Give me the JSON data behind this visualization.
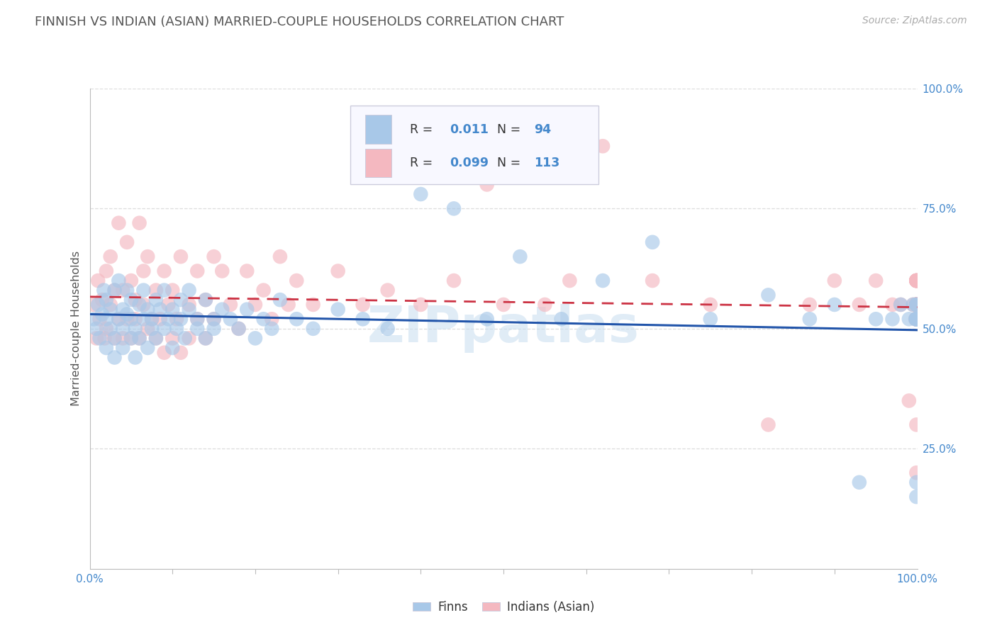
{
  "title": "FINNISH VS INDIAN (ASIAN) MARRIED-COUPLE HOUSEHOLDS CORRELATION CHART",
  "source": "Source: ZipAtlas.com",
  "ylabel": "Married-couple Households",
  "xlim": [
    0.0,
    1.0
  ],
  "ylim": [
    0.0,
    1.0
  ],
  "finns_R": 0.011,
  "finns_N": 94,
  "indians_R": 0.099,
  "indians_N": 113,
  "finns_color": "#a8c8e8",
  "indians_color": "#f4b8c0",
  "finns_line_color": "#2255aa",
  "indians_line_color": "#cc3344",
  "watermark_color": "#c8ddf0",
  "background_color": "#ffffff",
  "grid_color": "#dddddd",
  "title_color": "#555555",
  "source_color": "#aaaaaa",
  "tick_color": "#4488cc",
  "ylabel_color": "#555555",
  "legend_facecolor": "#f8f8ff",
  "legend_edgecolor": "#ccccdd",
  "finns_scatter_x": [
    0.005,
    0.008,
    0.01,
    0.012,
    0.015,
    0.017,
    0.02,
    0.02,
    0.02,
    0.025,
    0.025,
    0.03,
    0.03,
    0.03,
    0.035,
    0.035,
    0.04,
    0.04,
    0.04,
    0.045,
    0.045,
    0.05,
    0.05,
    0.05,
    0.055,
    0.055,
    0.06,
    0.06,
    0.065,
    0.065,
    0.07,
    0.07,
    0.075,
    0.075,
    0.08,
    0.08,
    0.085,
    0.09,
    0.09,
    0.095,
    0.1,
    0.1,
    0.105,
    0.11,
    0.11,
    0.115,
    0.12,
    0.12,
    0.13,
    0.13,
    0.14,
    0.14,
    0.15,
    0.15,
    0.16,
    0.17,
    0.18,
    0.19,
    0.2,
    0.21,
    0.22,
    0.23,
    0.25,
    0.27,
    0.3,
    0.33,
    0.36,
    0.4,
    0.44,
    0.48,
    0.52,
    0.57,
    0.62,
    0.68,
    0.75,
    0.82,
    0.87,
    0.9,
    0.93,
    0.95,
    0.97,
    0.98,
    0.99,
    0.995,
    0.998,
    0.999,
    0.999,
    0.999,
    0.999,
    0.999,
    0.999,
    0.999,
    0.999,
    0.999
  ],
  "finns_scatter_y": [
    0.52,
    0.5,
    0.55,
    0.48,
    0.53,
    0.58,
    0.46,
    0.52,
    0.56,
    0.5,
    0.54,
    0.48,
    0.58,
    0.44,
    0.52,
    0.6,
    0.5,
    0.54,
    0.46,
    0.53,
    0.58,
    0.48,
    0.52,
    0.56,
    0.5,
    0.44,
    0.55,
    0.48,
    0.52,
    0.58,
    0.46,
    0.54,
    0.52,
    0.5,
    0.56,
    0.48,
    0.54,
    0.5,
    0.58,
    0.52,
    0.46,
    0.54,
    0.5,
    0.52,
    0.56,
    0.48,
    0.54,
    0.58,
    0.5,
    0.52,
    0.48,
    0.56,
    0.52,
    0.5,
    0.54,
    0.52,
    0.5,
    0.54,
    0.48,
    0.52,
    0.5,
    0.56,
    0.52,
    0.5,
    0.54,
    0.52,
    0.5,
    0.78,
    0.75,
    0.52,
    0.65,
    0.52,
    0.6,
    0.68,
    0.52,
    0.57,
    0.52,
    0.55,
    0.18,
    0.52,
    0.52,
    0.55,
    0.52,
    0.55,
    0.52,
    0.52,
    0.55,
    0.52,
    0.55,
    0.52,
    0.52,
    0.18,
    0.15,
    0.52
  ],
  "indians_scatter_x": [
    0.005,
    0.008,
    0.01,
    0.012,
    0.015,
    0.018,
    0.02,
    0.02,
    0.025,
    0.025,
    0.03,
    0.03,
    0.035,
    0.035,
    0.04,
    0.04,
    0.045,
    0.045,
    0.05,
    0.05,
    0.055,
    0.055,
    0.06,
    0.06,
    0.065,
    0.065,
    0.07,
    0.07,
    0.075,
    0.08,
    0.08,
    0.085,
    0.09,
    0.09,
    0.095,
    0.1,
    0.1,
    0.105,
    0.11,
    0.11,
    0.12,
    0.12,
    0.13,
    0.13,
    0.14,
    0.14,
    0.15,
    0.15,
    0.16,
    0.17,
    0.18,
    0.19,
    0.2,
    0.21,
    0.22,
    0.23,
    0.24,
    0.25,
    0.27,
    0.3,
    0.33,
    0.36,
    0.4,
    0.44,
    0.48,
    0.5,
    0.52,
    0.55,
    0.58,
    0.62,
    0.68,
    0.75,
    0.82,
    0.87,
    0.9,
    0.93,
    0.95,
    0.97,
    0.98,
    0.99,
    0.995,
    0.998,
    0.999,
    0.999,
    0.999,
    0.999,
    0.999,
    0.999,
    0.999,
    0.999,
    0.999,
    0.999,
    0.999,
    0.999,
    0.999,
    0.999,
    0.999,
    0.999,
    0.999,
    0.999,
    0.999,
    0.999,
    0.999,
    0.999,
    0.999,
    0.999,
    0.999,
    0.999,
    0.999,
    0.999,
    0.999,
    0.999,
    0.999
  ],
  "indians_scatter_y": [
    0.55,
    0.48,
    0.6,
    0.52,
    0.56,
    0.48,
    0.62,
    0.5,
    0.55,
    0.65,
    0.48,
    0.58,
    0.52,
    0.72,
    0.48,
    0.58,
    0.52,
    0.68,
    0.48,
    0.6,
    0.52,
    0.56,
    0.72,
    0.48,
    0.62,
    0.55,
    0.5,
    0.65,
    0.52,
    0.48,
    0.58,
    0.52,
    0.45,
    0.62,
    0.55,
    0.48,
    0.58,
    0.52,
    0.45,
    0.65,
    0.55,
    0.48,
    0.62,
    0.52,
    0.56,
    0.48,
    0.65,
    0.52,
    0.62,
    0.55,
    0.5,
    0.62,
    0.55,
    0.58,
    0.52,
    0.65,
    0.55,
    0.6,
    0.55,
    0.62,
    0.55,
    0.58,
    0.55,
    0.6,
    0.8,
    0.55,
    0.85,
    0.55,
    0.6,
    0.88,
    0.6,
    0.55,
    0.3,
    0.55,
    0.6,
    0.55,
    0.6,
    0.55,
    0.55,
    0.35,
    0.55,
    0.52,
    0.55,
    0.6,
    0.55,
    0.52,
    0.55,
    0.6,
    0.55,
    0.52,
    0.55,
    0.6,
    0.52,
    0.55,
    0.6,
    0.55,
    0.52,
    0.55,
    0.6,
    0.55,
    0.52,
    0.2,
    0.3,
    0.55,
    0.6,
    0.55,
    0.52,
    0.55,
    0.6,
    0.55,
    0.52,
    0.55,
    0.6
  ]
}
